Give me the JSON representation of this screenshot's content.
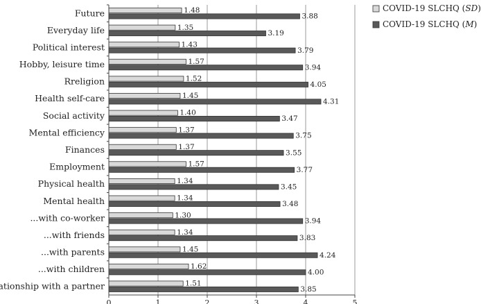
{
  "chart_data": {
    "type": "bar",
    "orientation": "horizontal",
    "categories": [
      "Future",
      "Everyday life",
      "Political interest",
      "Hobby, leisure time",
      "Rreligion",
      "Health self-care",
      "Social activity",
      "Mental efficiency",
      "Finances",
      "Employment",
      "Physical health",
      "Mental health",
      "...with co-worker",
      "...with friends",
      "...with parents",
      "...with children",
      "Relationship with a partner"
    ],
    "series": [
      {
        "name": "COVID-19 SLCHQ (SD)",
        "legend_prefix": "COVID-19 SLCHQ (",
        "legend_italic": "SD",
        "legend_suffix": ")",
        "color": "#d9d9d9",
        "value_labels": [
          "1.48",
          "1.35",
          "1.43",
          "1.57",
          "1.52",
          "1.45",
          "1.40",
          "1.37",
          "1.37",
          "1.57",
          "1.34",
          "1.34",
          "1.30",
          "1.34",
          "1.45",
          "1.62",
          "1.51"
        ],
        "values": [
          1.48,
          1.35,
          1.43,
          1.57,
          1.52,
          1.45,
          1.4,
          1.37,
          1.37,
          1.57,
          1.34,
          1.34,
          1.3,
          1.34,
          1.45,
          1.62,
          1.51
        ]
      },
      {
        "name": "COVID-19 SLCHQ (M)",
        "legend_prefix": "COVID-19 SLCHQ (",
        "legend_italic": "M",
        "legend_suffix": ")",
        "color": "#595959",
        "value_labels": [
          "3.88",
          "3.19",
          "3.79",
          "3.94",
          "4.05",
          "4.31",
          "3.47",
          "3.75",
          "3.55",
          "3.77",
          "3.45",
          "3.48",
          "3.94",
          "3.83",
          "4.24",
          "4.00",
          "3.85"
        ],
        "values": [
          3.88,
          3.19,
          3.79,
          3.94,
          4.05,
          4.31,
          3.47,
          3.75,
          3.55,
          3.77,
          3.45,
          3.48,
          3.94,
          3.83,
          4.24,
          4.0,
          3.85
        ]
      }
    ],
    "xlim": [
      0,
      5
    ],
    "x_ticks": [
      "0",
      "1",
      "2",
      "3",
      "4",
      "5"
    ],
    "grid": true,
    "legend_position": "top-right"
  }
}
